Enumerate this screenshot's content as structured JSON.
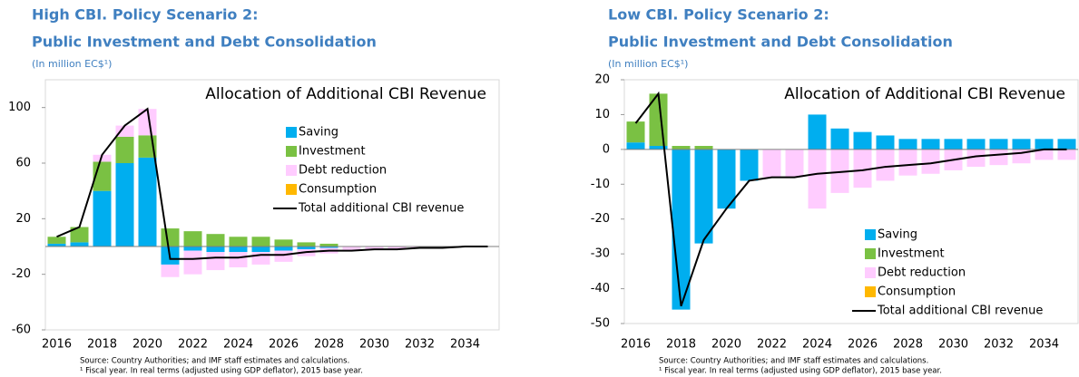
{
  "chart_data": [
    {
      "type": "bar",
      "stacked": true,
      "title": "High CBI. Policy Scenario 2:",
      "subtitle": "Public Investment and Debt Consolidation",
      "unit_note": "(In million EC$¹)",
      "inner_title": "Allocation of Additional CBI Revenue",
      "source": "Source: Country Authorities; and IMF staff estimates and calculations.",
      "footnote": "¹ Fiscal year. In real terms (adjusted using GDP deflator), 2015 base year.",
      "categories": [
        "2016",
        null,
        "2018",
        null,
        "2020",
        null,
        "2022",
        null,
        "2024",
        null,
        "2026",
        null,
        "2028",
        null,
        "2030",
        null,
        "2032",
        null,
        "2034",
        null
      ],
      "ylim": [
        -60,
        120
      ],
      "yticks": [
        -60,
        -20,
        20,
        60,
        100
      ],
      "legend": "upper right",
      "series": [
        {
          "name": "Saving",
          "color": "#00aeef",
          "values": [
            2,
            3,
            40,
            60,
            64,
            -13,
            -3,
            -4,
            -4,
            -4,
            -3,
            -2,
            -1,
            0,
            0,
            0,
            0,
            0,
            0,
            0
          ]
        },
        {
          "name": "Investment",
          "color": "#7ac143",
          "values": [
            5,
            11,
            21,
            19,
            16,
            13,
            11,
            9,
            7,
            7,
            5,
            3,
            2,
            0,
            0,
            0,
            0,
            0,
            0,
            0
          ]
        },
        {
          "name": "Debt reduction",
          "color": "#ffccff",
          "values": [
            0,
            0,
            5,
            8,
            19,
            -9,
            -17,
            -13,
            -11,
            -9,
            -8,
            -5,
            -4,
            -3,
            -2,
            -2,
            -1,
            -1,
            0,
            0
          ]
        },
        {
          "name": "Consumption",
          "color": "#ffb800",
          "values": [
            0,
            0,
            0,
            0,
            0,
            0,
            0,
            0,
            0,
            0,
            0,
            0,
            0,
            0,
            0,
            0,
            0,
            0,
            0,
            0
          ]
        },
        {
          "name": "Total additional CBI revenue",
          "type": "line",
          "color": "#000000",
          "values": [
            7,
            14,
            66,
            87,
            99,
            -9,
            -9,
            -8,
            -8,
            -6,
            -6,
            -4,
            -3,
            -3,
            -2,
            -2,
            -1,
            -1,
            0,
            0
          ]
        }
      ]
    },
    {
      "type": "bar",
      "stacked": true,
      "title": "Low CBI. Policy Scenario 2:",
      "subtitle": "Public Investment and Debt Consolidation",
      "unit_note": "(In million EC$¹)",
      "inner_title": "Allocation of Additional CBI Revenue",
      "source": "Source: Country Authorities; and IMF staff estimates and calculations.",
      "footnote": "¹ Fiscal year. In real terms (adjusted using GDP deflator), 2015 base year.",
      "categories": [
        "2016",
        null,
        "2018",
        null,
        "2020",
        null,
        "2022",
        null,
        "2024",
        null,
        "2026",
        null,
        "2028",
        null,
        "2030",
        null,
        "2032",
        null,
        "2034",
        null
      ],
      "ylim": [
        -50,
        20
      ],
      "yticks": [
        -50,
        -40,
        -30,
        -20,
        -10,
        0,
        10,
        20
      ],
      "legend": "lower right",
      "series": [
        {
          "name": "Saving",
          "color": "#00aeef",
          "values": [
            2,
            1,
            -46,
            -27,
            -17,
            -9,
            0,
            0,
            10,
            6,
            5,
            4,
            3,
            3,
            3,
            3,
            3,
            3,
            3,
            3
          ]
        },
        {
          "name": "Investment",
          "color": "#7ac143",
          "values": [
            6,
            15,
            1,
            1,
            0,
            0,
            0,
            0,
            0,
            0,
            0,
            0,
            0,
            0,
            0,
            0,
            0,
            0,
            0,
            0
          ]
        },
        {
          "name": "Debt reduction",
          "color": "#ffccff",
          "values": [
            0,
            0,
            0,
            0,
            0,
            0,
            -8,
            -8,
            -17,
            -12.5,
            -11,
            -9,
            -7.5,
            -7,
            -6,
            -5,
            -4.5,
            -4,
            -3,
            -3
          ]
        },
        {
          "name": "Consumption",
          "color": "#ffb800",
          "values": [
            0,
            0,
            0,
            0,
            0,
            0,
            0,
            0,
            0,
            0,
            0,
            0,
            0,
            0,
            0,
            0,
            0,
            0,
            0,
            0
          ]
        },
        {
          "name": "Total additional CBI revenue",
          "type": "line",
          "color": "#000000",
          "values": [
            7.5,
            16,
            -45,
            -26,
            -17,
            -9,
            -8,
            -8,
            -7,
            -6.5,
            -6,
            -5,
            -4.5,
            -4,
            -3,
            -2,
            -1.5,
            -1,
            0,
            0
          ]
        }
      ]
    }
  ]
}
